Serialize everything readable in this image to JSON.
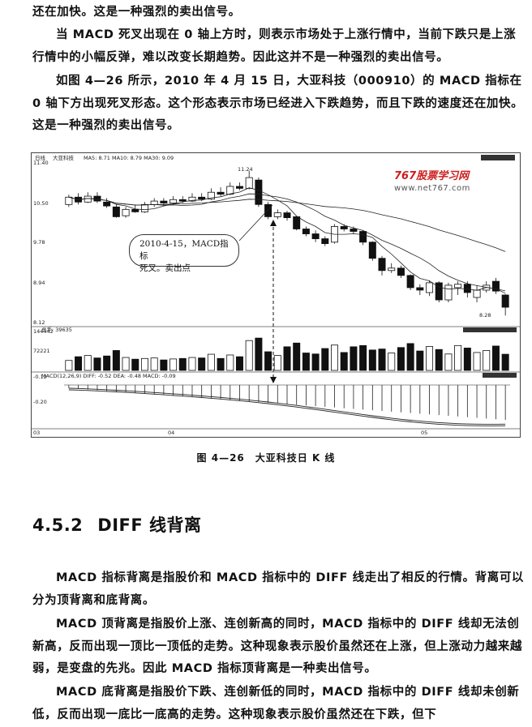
{
  "paragraphs_top": [
    {
      "text": "还在加快。这是一种强烈的卖出信号。",
      "indent": false,
      "style": "k"
    },
    {
      "text": "当 MACD 死叉出现在 0 轴上方时，则表示市场处于上涨行情中，当前下跌只是上涨行情中的小幅反弹，难以改变长期趋势。因此这并不是一种强烈的卖出信号。",
      "indent": true,
      "style": "k"
    },
    {
      "text": "如图 4—26 所示，2010 年 4 月 15 日，大亚科技（000910）的 MACD 指标在 0 轴下方出现死叉形态。这个形态表示市场已经进入下跌趋势，而且下跌的速度还在加快。这是一种强烈的卖出信号。",
      "indent": true,
      "style": "k"
    }
  ],
  "figure": {
    "header_label": "日线",
    "header_stock": "大亚科技",
    "ma_info": "MA5: 8.71  MA10: 8.79  MA30: 9.09",
    "y_labels": [
      "11.40",
      "10.50",
      "9.78",
      "8.94",
      "8.12"
    ],
    "high_label": "11.24",
    "low_label": "8.28",
    "volume_info": "总手: 39635",
    "volume_y_labels": [
      "144442",
      "72221"
    ],
    "macd_info": "MACD(12,26,9)  DIFF: -0.52  DEA: -0.48  MACD: -0.09",
    "macd_y_labels": [
      "-0.12",
      "-0.20"
    ],
    "x_labels": [
      "03",
      "04",
      "05"
    ],
    "callout_line1": "2010-4-15，MACD指标",
    "callout_line2": "死叉。卖出点",
    "watermark_brand": "767股票学习网",
    "watermark_url": "www.net767.com",
    "colors": {
      "up": "#ffffff",
      "down": "#111111",
      "line": "#222222"
    }
  },
  "chart_data": {
    "type": "candlestick",
    "candles": [
      {
        "o": 10.55,
        "c": 10.7,
        "h": 10.75,
        "l": 10.5
      },
      {
        "o": 10.7,
        "c": 10.6,
        "h": 10.78,
        "l": 10.55
      },
      {
        "o": 10.6,
        "c": 10.72,
        "h": 10.8,
        "l": 10.58
      },
      {
        "o": 10.72,
        "c": 10.62,
        "h": 10.8,
        "l": 10.58
      },
      {
        "o": 10.6,
        "c": 10.52,
        "h": 10.68,
        "l": 10.48
      },
      {
        "o": 10.5,
        "c": 10.3,
        "h": 10.55,
        "l": 10.28
      },
      {
        "o": 10.32,
        "c": 10.45,
        "h": 10.5,
        "l": 10.28
      },
      {
        "o": 10.45,
        "c": 10.4,
        "h": 10.55,
        "l": 10.38
      },
      {
        "o": 10.4,
        "c": 10.55,
        "h": 10.6,
        "l": 10.38
      },
      {
        "o": 10.55,
        "c": 10.62,
        "h": 10.68,
        "l": 10.5
      },
      {
        "o": 10.62,
        "c": 10.58,
        "h": 10.68,
        "l": 10.52
      },
      {
        "o": 10.58,
        "c": 10.65,
        "h": 10.72,
        "l": 10.55
      },
      {
        "o": 10.65,
        "c": 10.62,
        "h": 10.72,
        "l": 10.58
      },
      {
        "o": 10.62,
        "c": 10.7,
        "h": 10.78,
        "l": 10.6
      },
      {
        "o": 10.7,
        "c": 10.66,
        "h": 10.78,
        "l": 10.62
      },
      {
        "o": 10.66,
        "c": 10.8,
        "h": 10.88,
        "l": 10.64
      },
      {
        "o": 10.8,
        "c": 10.76,
        "h": 10.9,
        "l": 10.72
      },
      {
        "o": 10.76,
        "c": 10.92,
        "h": 11.0,
        "l": 10.74
      },
      {
        "o": 10.92,
        "c": 10.88,
        "h": 11.0,
        "l": 10.84
      },
      {
        "o": 10.88,
        "c": 11.1,
        "h": 11.24,
        "l": 10.86
      },
      {
        "o": 11.05,
        "c": 10.55,
        "h": 11.1,
        "l": 10.5
      },
      {
        "o": 10.55,
        "c": 10.3,
        "h": 10.6,
        "l": 10.25
      },
      {
        "o": 10.3,
        "c": 10.38,
        "h": 10.45,
        "l": 10.25
      },
      {
        "o": 10.38,
        "c": 10.28,
        "h": 10.42,
        "l": 10.22
      },
      {
        "o": 10.3,
        "c": 10.05,
        "h": 10.32,
        "l": 10.02
      },
      {
        "o": 10.05,
        "c": 9.95,
        "h": 10.1,
        "l": 9.9
      },
      {
        "o": 9.95,
        "c": 9.85,
        "h": 10.02,
        "l": 9.78
      },
      {
        "o": 9.85,
        "c": 9.75,
        "h": 9.9,
        "l": 9.7
      },
      {
        "o": 9.78,
        "c": 10.1,
        "h": 10.15,
        "l": 9.75
      },
      {
        "o": 10.1,
        "c": 10.05,
        "h": 10.15,
        "l": 10.0
      },
      {
        "o": 10.05,
        "c": 10.0,
        "h": 10.1,
        "l": 9.95
      },
      {
        "o": 10.0,
        "c": 9.78,
        "h": 10.02,
        "l": 9.72
      },
      {
        "o": 9.78,
        "c": 9.45,
        "h": 9.8,
        "l": 9.4
      },
      {
        "o": 9.45,
        "c": 9.2,
        "h": 9.5,
        "l": 9.1
      },
      {
        "o": 9.2,
        "c": 9.25,
        "h": 9.35,
        "l": 9.15
      },
      {
        "o": 9.25,
        "c": 9.1,
        "h": 9.3,
        "l": 9.05
      },
      {
        "o": 9.1,
        "c": 8.85,
        "h": 9.12,
        "l": 8.8
      },
      {
        "o": 8.85,
        "c": 8.8,
        "h": 8.92,
        "l": 8.7
      },
      {
        "o": 8.75,
        "c": 8.95,
        "h": 9.0,
        "l": 8.68
      },
      {
        "o": 8.95,
        "c": 8.6,
        "h": 8.98,
        "l": 8.55
      },
      {
        "o": 8.6,
        "c": 8.9,
        "h": 8.95,
        "l": 8.55
      },
      {
        "o": 8.85,
        "c": 8.92,
        "h": 8.98,
        "l": 8.7
      },
      {
        "o": 8.92,
        "c": 8.75,
        "h": 8.98,
        "l": 8.65
      },
      {
        "o": 8.65,
        "c": 8.8,
        "h": 8.9,
        "l": 8.55
      },
      {
        "o": 8.8,
        "c": 8.9,
        "h": 8.98,
        "l": 8.75
      },
      {
        "o": 8.98,
        "c": 8.78,
        "h": 9.05,
        "l": 8.72
      },
      {
        "o": 8.7,
        "c": 8.45,
        "h": 8.72,
        "l": 8.28
      }
    ],
    "volume": [
      40,
      55,
      60,
      50,
      58,
      80,
      52,
      45,
      48,
      50,
      42,
      46,
      48,
      52,
      50,
      65,
      48,
      62,
      55,
      120,
      130,
      75,
      60,
      95,
      110,
      70,
      66,
      88,
      102,
      72,
      95,
      100,
      82,
      86,
      70,
      92,
      108,
      78,
      96,
      84,
      66,
      100,
      90,
      72,
      80,
      98,
      65
    ],
    "price_range": [
      8.12,
      11.4
    ],
    "x_labels": [
      "03",
      "04",
      "05"
    ],
    "highlight_index": 23
  },
  "section": {
    "number": "4.5.2",
    "title": "DIFF 线背离"
  },
  "paragraphs_bottom": [
    {
      "text": "MACD 指标背离是指股价和 MACD 指标中的 DIFF 线走出了相反的行情。背离可以分为顶背离和底背离。",
      "indent": true
    },
    {
      "text": "MACD 顶背离是指股价上涨、连创新高的同时，MACD 指标中的 DIFF 线却无法创新高，反而出现一顶比一顶低的走势。这种现象表示股价虽然还在上涨，但上涨动力越来越弱，是变盘的先兆。因此 MACD 指标顶背离是一种卖出信号。",
      "indent": true
    },
    {
      "text": "MACD 底背离是指股价下跌、连创新低的同时，MACD 指标中的 DIFF 线却未创新低，反而出现一底比一底高的走势。这种现象表示股价虽然还在下跌，但下",
      "indent": true
    }
  ],
  "caption": "图 4—26　大亚科技日 K 线"
}
